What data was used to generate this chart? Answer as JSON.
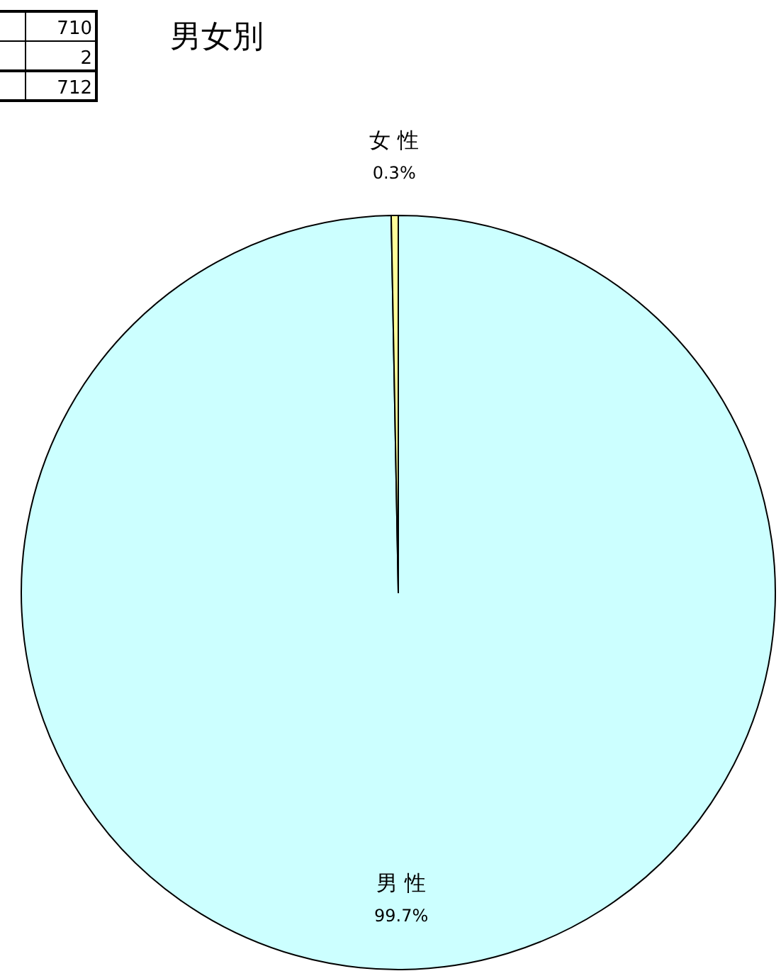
{
  "chart_data": {
    "type": "pie",
    "title": "男女別",
    "categories": [
      "男 性",
      "女 性"
    ],
    "values": [
      99.7,
      0.3
    ],
    "value_labels": [
      "99.7%",
      "0.3%"
    ],
    "colors": [
      "#ccffff",
      "#ffff99"
    ],
    "data_labels": true,
    "annotations": [
      "710",
      "2",
      "712"
    ],
    "legend": false
  }
}
